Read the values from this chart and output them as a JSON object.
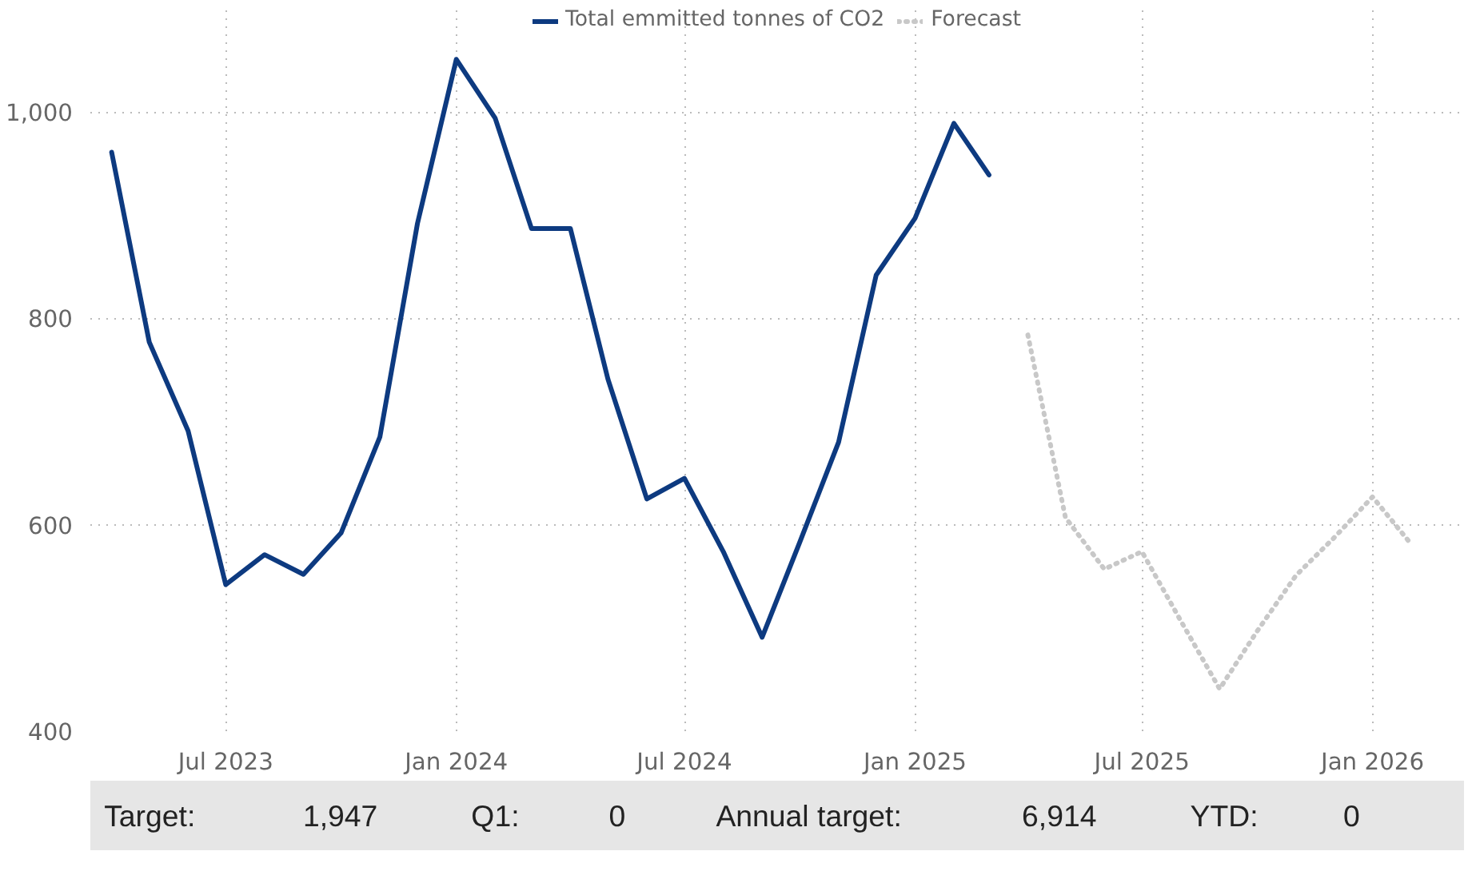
{
  "chart_data": {
    "type": "line",
    "x": [
      "2023-04",
      "2023-05",
      "2023-06",
      "2023-07",
      "2023-08",
      "2023-09",
      "2023-10",
      "2023-11",
      "2023-12",
      "2024-01",
      "2024-02",
      "2024-03",
      "2024-04",
      "2024-05",
      "2024-06",
      "2024-07",
      "2024-08",
      "2024-09",
      "2024-10",
      "2024-11",
      "2024-12",
      "2025-01",
      "2025-02",
      "2025-03"
    ],
    "series": [
      {
        "name": "Total emmitted tonnes of CO2",
        "color": "#0d3a80",
        "line_style": "solid",
        "values": [
          961,
          777,
          691,
          542,
          571,
          552,
          592,
          685,
          892,
          1051,
          994,
          887,
          887,
          741,
          625,
          645,
          574,
          491,
          583,
          680,
          842,
          897,
          989,
          939
        ]
      },
      {
        "name": "Forecast",
        "color": "#c8c8c8",
        "line_style": "dotted",
        "x": [
          "2025-04",
          "2025-05",
          "2025-06",
          "2025-07",
          "2025-08",
          "2025-09",
          "2025-10",
          "2025-11",
          "2025-12",
          "2026-01",
          "2026-02"
        ],
        "values": [
          784,
          607,
          557,
          574,
          507,
          441,
          497,
          551,
          587,
          627,
          581
        ]
      }
    ],
    "xlim": [
      "2023-03-15",
      "2026-03-15"
    ],
    "xticks": [
      {
        "value": "2023-07",
        "label": "Jul 2023"
      },
      {
        "value": "2024-01",
        "label": "Jan 2024"
      },
      {
        "value": "2024-07",
        "label": "Jul 2024"
      },
      {
        "value": "2025-01",
        "label": "Jan 2025"
      },
      {
        "value": "2025-07",
        "label": "Jul 2025"
      },
      {
        "value": "2026-01",
        "label": "Jan 2026"
      }
    ],
    "ylim": [
      400,
      1100
    ],
    "yticks": [
      {
        "value": 400,
        "label": "400"
      },
      {
        "value": 600,
        "label": "600"
      },
      {
        "value": 800,
        "label": "800"
      },
      {
        "value": 1000,
        "label": "1,000"
      }
    ],
    "grid": true,
    "legend": "top",
    "annotations": [
      "Target:",
      "1,947",
      "Q1:",
      "0",
      "Annual target:",
      "6,914",
      "YTD:",
      "0"
    ]
  }
}
